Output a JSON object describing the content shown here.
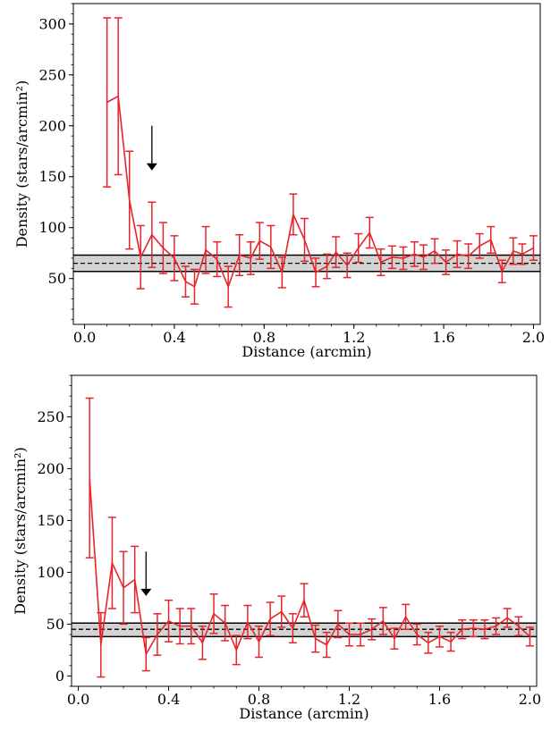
{
  "chart_data": [
    {
      "type": "line",
      "xlabel": "Distance (arcmin)",
      "ylabel": "Density (stars/arcmin²)",
      "xlim": [
        -0.05,
        2.03
      ],
      "ylim": [
        5,
        320
      ],
      "xticks": [
        0.0,
        0.4,
        0.8,
        1.2,
        1.6,
        2.0
      ],
      "xtick_labels": [
        "0.0",
        "0.4",
        "0.8",
        "1.2",
        "1.6",
        "2.0"
      ],
      "yticks": [
        50,
        100,
        150,
        200,
        250,
        300
      ],
      "ytick_labels": [
        "50",
        "100",
        "150",
        "200",
        "250",
        "300"
      ],
      "background": {
        "mean": 65,
        "lower": 57,
        "upper": 73
      },
      "arrow": {
        "x": 0.3,
        "y_start": 200,
        "y_end": 157
      },
      "series": [
        {
          "color": "#e8232a",
          "x": [
            0.1,
            0.15,
            0.2,
            0.25,
            0.3,
            0.35,
            0.4,
            0.45,
            0.49,
            0.54,
            0.59,
            0.64,
            0.69,
            0.74,
            0.78,
            0.83,
            0.88,
            0.93,
            0.98,
            1.03,
            1.08,
            1.12,
            1.17,
            1.22,
            1.27,
            1.32,
            1.37,
            1.42,
            1.47,
            1.51,
            1.56,
            1.61,
            1.66,
            1.71,
            1.76,
            1.81,
            1.86,
            1.91,
            1.95,
            2.0
          ],
          "y": [
            223,
            229,
            127,
            71,
            93,
            80,
            70,
            47,
            42,
            78,
            69,
            42,
            73,
            70,
            87,
            81,
            56,
            113,
            88,
            56,
            62,
            76,
            63,
            80,
            95,
            66,
            71,
            70,
            74,
            71,
            77,
            66,
            74,
            72,
            82,
            88,
            57,
            77,
            74,
            80
          ],
          "err": [
            83,
            77,
            48,
            31,
            32,
            25,
            22,
            15,
            17,
            23,
            17,
            20,
            20,
            16,
            18,
            21,
            15,
            20,
            21,
            14,
            12,
            15,
            12,
            14,
            15,
            13,
            11,
            11,
            12,
            12,
            12,
            12,
            13,
            12,
            12,
            13,
            11,
            13,
            10,
            12
          ]
        }
      ]
    },
    {
      "type": "line",
      "xlabel": "Distance (arcmin)",
      "ylabel": "Density (stars/arcmin²)",
      "xlim": [
        -0.03,
        2.03
      ],
      "ylim": [
        -10,
        290
      ],
      "xticks": [
        0.0,
        0.4,
        0.8,
        1.2,
        1.6,
        2.0
      ],
      "xtick_labels": [
        "0.0",
        "0.4",
        "0.8",
        "1.2",
        "1.6",
        "2.0"
      ],
      "yticks": [
        0,
        50,
        100,
        150,
        200,
        250
      ],
      "ytick_labels": [
        "0",
        "50",
        "100",
        "150",
        "200",
        "250"
      ],
      "background": {
        "mean": 45,
        "lower": 38,
        "upper": 51
      },
      "arrow": {
        "x": 0.3,
        "y_start": 120,
        "y_end": 78
      },
      "series": [
        {
          "color": "#e8232a",
          "x": [
            0.05,
            0.1,
            0.15,
            0.2,
            0.25,
            0.3,
            0.35,
            0.4,
            0.45,
            0.5,
            0.55,
            0.6,
            0.65,
            0.7,
            0.75,
            0.8,
            0.85,
            0.9,
            0.95,
            1.0,
            1.05,
            1.1,
            1.15,
            1.2,
            1.25,
            1.3,
            1.35,
            1.4,
            1.45,
            1.5,
            1.55,
            1.6,
            1.65,
            1.7,
            1.75,
            1.8,
            1.85,
            1.9,
            1.95,
            2.0
          ],
          "y": [
            191,
            30,
            109,
            85,
            93,
            21,
            40,
            53,
            48,
            48,
            32,
            60,
            51,
            25,
            52,
            33,
            55,
            62,
            46,
            73,
            36,
            30,
            50,
            40,
            40,
            45,
            53,
            36,
            57,
            40,
            32,
            38,
            33,
            45,
            46,
            45,
            48,
            56,
            48,
            38
          ],
          "err": [
            77,
            31,
            44,
            35,
            32,
            16,
            20,
            20,
            17,
            17,
            16,
            19,
            17,
            14,
            16,
            15,
            16,
            15,
            14,
            16,
            13,
            12,
            13,
            11,
            11,
            10,
            13,
            10,
            12,
            10,
            10,
            10,
            9,
            9,
            8,
            9,
            8,
            9,
            9,
            9
          ]
        }
      ]
    }
  ]
}
